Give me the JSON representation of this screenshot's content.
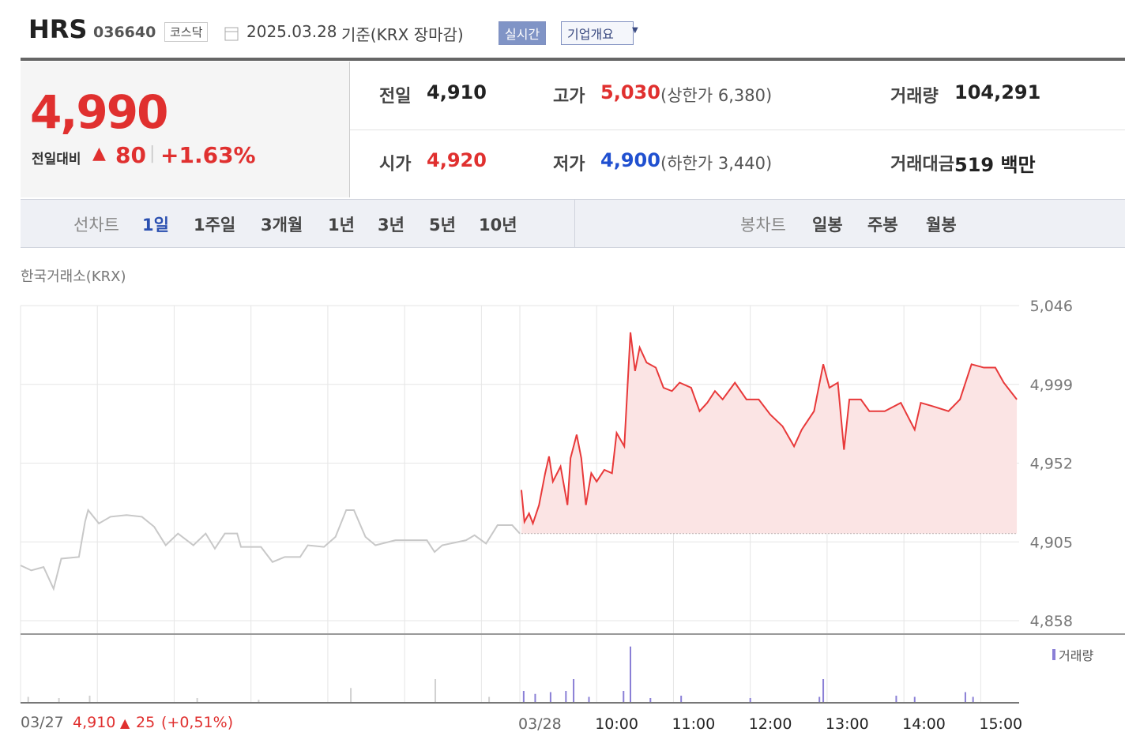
{
  "header": {
    "name": "HRS",
    "code": "036640",
    "market": "코스닥",
    "date": "2025.03.28",
    "basis": "기준(KRX 장마감)",
    "realtime": "실시간",
    "company_info": "기업개요"
  },
  "summary": {
    "price": "4,990",
    "change_label": "전일대비",
    "change_arrow": "▲",
    "change": "80",
    "change_rate": "+1.63%",
    "stats": [
      [
        {
          "label": "전일",
          "value": "4,910",
          "tone": "plain"
        },
        {
          "label": "고가",
          "value": "5,030",
          "note": "(상한가 6,380)",
          "tone": "up"
        },
        {
          "label": "거래량",
          "value": "104,291",
          "tone": "plain"
        }
      ],
      [
        {
          "label": "시가",
          "value": "4,920",
          "tone": "up"
        },
        {
          "label": "저가",
          "value": "4,900",
          "note": "(하한가 3,440)",
          "tone": "down"
        },
        {
          "label": "거래대금",
          "value": "519 백만",
          "tone": "plain"
        }
      ]
    ]
  },
  "tabs": {
    "line_label": "선차트",
    "line_periods": [
      "1일",
      "1주일",
      "3개월",
      "1년",
      "3년",
      "5년",
      "10년"
    ],
    "candle_label": "봉차트",
    "candle_periods": [
      "일봉",
      "주봉",
      "월봉"
    ]
  },
  "source": "한국거래소(KRX)",
  "chart_data": {
    "type": "line",
    "ylim": [
      4850,
      5046
    ],
    "yticks": [
      {
        "value": 4858,
        "label": "4,858"
      },
      {
        "value": 4905,
        "label": "4,905"
      },
      {
        "value": 4952,
        "label": "4,952"
      },
      {
        "value": 4999,
        "label": "4,999"
      },
      {
        "value": 5046,
        "label": "5,046"
      }
    ],
    "xlim": [
      0,
      13
    ],
    "xticks": [
      {
        "value": 0,
        "label": "03/27"
      },
      {
        "value": 6.5,
        "label": "03/28"
      },
      {
        "value": 7.5,
        "label": "10:00"
      },
      {
        "value": 8.5,
        "label": "11:00"
      },
      {
        "value": 9.5,
        "label": "12:00"
      },
      {
        "value": 10.5,
        "label": "13:00"
      },
      {
        "value": 11.5,
        "label": "14:00"
      },
      {
        "value": 12.5,
        "label": "15:00"
      }
    ],
    "xgrid": [
      1,
      2,
      3,
      4,
      5,
      6
    ],
    "grid": true,
    "baseline": 4910,
    "series": [
      {
        "color": "#c8c8c8",
        "x": [
          0,
          0.14,
          0.3,
          0.43,
          0.53,
          0.76,
          0.84,
          0.88,
          1.02,
          1.17,
          1.38,
          1.58,
          1.74,
          1.89,
          2.05,
          2.25,
          2.41,
          2.53,
          2.66,
          2.82,
          2.87,
          3.13,
          3.28,
          3.44,
          3.64,
          3.74,
          3.95,
          4.1,
          4.24,
          4.34,
          4.49,
          4.62,
          4.88,
          5.29,
          5.39,
          5.49,
          5.8,
          5.91,
          6.06,
          6.21,
          6.4,
          6.5
        ],
        "values": [
          4891,
          4888,
          4890,
          4877,
          4895,
          4896,
          4917,
          4924,
          4916,
          4920,
          4921,
          4920,
          4914,
          4903,
          4910,
          4903,
          4910,
          4901,
          4910,
          4910,
          4902,
          4902,
          4893,
          4896,
          4896,
          4903,
          4902,
          4908,
          4924,
          4924,
          4908,
          4903,
          4906,
          4906,
          4899,
          4903,
          4906,
          4909,
          4904,
          4915,
          4915,
          4910
        ]
      },
      {
        "color": "#e8393a",
        "fill": "#fbe4e4",
        "x": [
          6.52,
          6.56,
          6.62,
          6.67,
          6.75,
          6.83,
          6.88,
          6.93,
          7.03,
          7.12,
          7.16,
          7.24,
          7.3,
          7.36,
          7.43,
          7.5,
          7.6,
          7.7,
          7.76,
          7.86,
          7.94,
          8.0,
          8.06,
          8.15,
          8.27,
          8.37,
          8.48,
          8.58,
          8.73,
          8.84,
          8.94,
          9.04,
          9.14,
          9.3,
          9.45,
          9.61,
          9.76,
          9.92,
          10.07,
          10.17,
          10.33,
          10.45,
          10.53,
          10.64,
          10.72,
          10.79,
          10.94,
          11.05,
          11.25,
          11.46,
          11.64,
          11.72,
          11.87,
          12.08,
          12.23,
          12.38,
          12.54,
          12.69,
          12.8,
          12.97
        ],
        "values": [
          4936,
          4917,
          4922,
          4916,
          4927,
          4946,
          4956,
          4941,
          4950,
          4927,
          4955,
          4969,
          4955,
          4927,
          4946,
          4941,
          4948,
          4946,
          4970,
          4962,
          5030,
          5007,
          5021,
          5012,
          5009,
          4997,
          4995,
          5000,
          4997,
          4983,
          4988,
          4995,
          4990,
          5000,
          4990,
          4990,
          4981,
          4974,
          4962,
          4972,
          4983,
          5011,
          4997,
          5000,
          4960,
          4990,
          4990,
          4983,
          4983,
          4988,
          4972,
          4988,
          4986,
          4983,
          4990,
          5011,
          5009,
          5009,
          5000,
          4990
        ]
      }
    ],
    "volume": {
      "name": "거래량",
      "ylim": [
        0,
        100
      ],
      "series": [
        {
          "color": "#d0d0d0",
          "x": [
            0.1,
            0.5,
            0.9,
            2.3,
            3.1,
            4.3,
            5.4,
            6.1
          ],
          "values": [
            10,
            8,
            12,
            8,
            5,
            25,
            40,
            10
          ]
        },
        {
          "color": "#8a7fd6",
          "x": [
            6.55,
            6.7,
            6.9,
            7.1,
            7.2,
            7.4,
            7.85,
            7.94,
            8.2,
            8.6,
            9.5,
            10.4,
            10.45,
            11.4,
            11.64,
            12.3,
            12.4
          ],
          "values": [
            20,
            15,
            18,
            20,
            40,
            10,
            20,
            95,
            8,
            12,
            8,
            10,
            40,
            12,
            10,
            18,
            10
          ]
        }
      ]
    }
  },
  "footer": {
    "date": "03/27",
    "close": "4,910",
    "arrow": "▲",
    "change": "25",
    "rate": "(+0,51%)"
  }
}
